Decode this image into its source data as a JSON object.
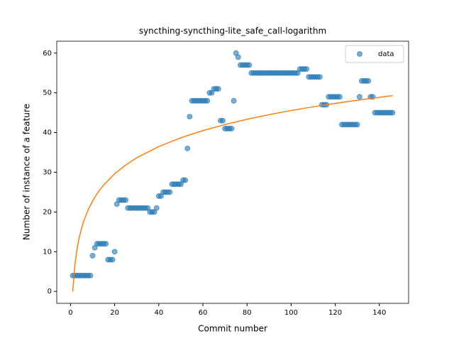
{
  "chart_data": {
    "type": "scatter",
    "title": "syncthing-syncthing-lite_safe_call-logarithm",
    "x_label": "Commit number",
    "y_label": "Number of instance of a feature",
    "xlim": [
      -6.25,
      153.25
    ],
    "ylim": [
      -3,
      63
    ],
    "xticks": [
      0,
      20,
      40,
      60,
      80,
      100,
      120,
      140
    ],
    "yticks": [
      0,
      10,
      20,
      30,
      40,
      50,
      60
    ],
    "legend": "upper right",
    "series": [
      {
        "name": "data",
        "kind": "scatter",
        "color": "#1f77b4",
        "x": [
          1,
          2,
          3,
          4,
          5,
          6,
          7,
          8,
          9,
          10,
          11,
          12,
          13,
          14,
          15,
          16,
          17,
          18,
          19,
          20,
          21,
          22,
          23,
          24,
          25,
          26,
          27,
          28,
          29,
          30,
          31,
          32,
          33,
          34,
          35,
          36,
          37,
          38,
          39,
          40,
          41,
          42,
          43,
          44,
          45,
          46,
          47,
          48,
          49,
          50,
          51,
          52,
          53,
          54,
          55,
          56,
          57,
          58,
          59,
          60,
          61,
          62,
          63,
          64,
          65,
          66,
          67,
          68,
          69,
          70,
          71,
          72,
          73,
          74,
          75,
          76,
          77,
          78,
          79,
          80,
          81,
          82,
          83,
          84,
          85,
          86,
          87,
          88,
          89,
          90,
          91,
          92,
          93,
          94,
          95,
          96,
          97,
          98,
          99,
          100,
          101,
          102,
          103,
          104,
          105,
          106,
          107,
          108,
          109,
          110,
          111,
          112,
          113,
          114,
          115,
          116,
          117,
          118,
          119,
          120,
          121,
          122,
          123,
          124,
          125,
          126,
          127,
          128,
          129,
          130,
          131,
          132,
          133,
          134,
          135,
          136,
          137,
          138,
          139,
          140,
          141,
          142,
          143,
          144,
          145,
          146
        ],
        "values": [
          4,
          4,
          4,
          4,
          4,
          4,
          4,
          4,
          4,
          9,
          11,
          12,
          12,
          12,
          12,
          12,
          8,
          8,
          8,
          10,
          22,
          23,
          23,
          23,
          23,
          21,
          21,
          21,
          21,
          21,
          21,
          21,
          21,
          21,
          21,
          20,
          20,
          20,
          21,
          24,
          24,
          25,
          25,
          25,
          25,
          27,
          27,
          27,
          27,
          27,
          28,
          28,
          36,
          44,
          48,
          48,
          48,
          48,
          48,
          48,
          48,
          48,
          50,
          50,
          51,
          51,
          51,
          43,
          43,
          41,
          41,
          41,
          41,
          48,
          60,
          59,
          57,
          57,
          57,
          57,
          57,
          55,
          55,
          55,
          55,
          55,
          55,
          55,
          55,
          55,
          55,
          55,
          55,
          55,
          55,
          55,
          55,
          55,
          55,
          55,
          55,
          55,
          55,
          56,
          56,
          56,
          56,
          54,
          54,
          54,
          54,
          54,
          54,
          47,
          47,
          47,
          49,
          49,
          49,
          49,
          49,
          49,
          42,
          42,
          42,
          42,
          42,
          42,
          42,
          42,
          49,
          53,
          53,
          53,
          53,
          49,
          49,
          45,
          45,
          45,
          45,
          45,
          45,
          45,
          45,
          45
        ]
      },
      {
        "kind": "line",
        "color": "#ff7f0e",
        "x": [
          1,
          2,
          3,
          4,
          5,
          6,
          8,
          10,
          12,
          15,
          20,
          25,
          30,
          40,
          50,
          60,
          70,
          80,
          90,
          100,
          110,
          120,
          130,
          140,
          146
        ],
        "values": [
          0,
          6.86,
          10.87,
          13.71,
          15.92,
          17.72,
          20.57,
          22.77,
          24.58,
          26.78,
          29.63,
          31.83,
          33.64,
          36.48,
          38.69,
          40.49,
          42.02,
          43.34,
          44.5,
          45.55,
          46.49,
          47.35,
          48.14,
          48.87,
          49.29
        ]
      }
    ]
  }
}
